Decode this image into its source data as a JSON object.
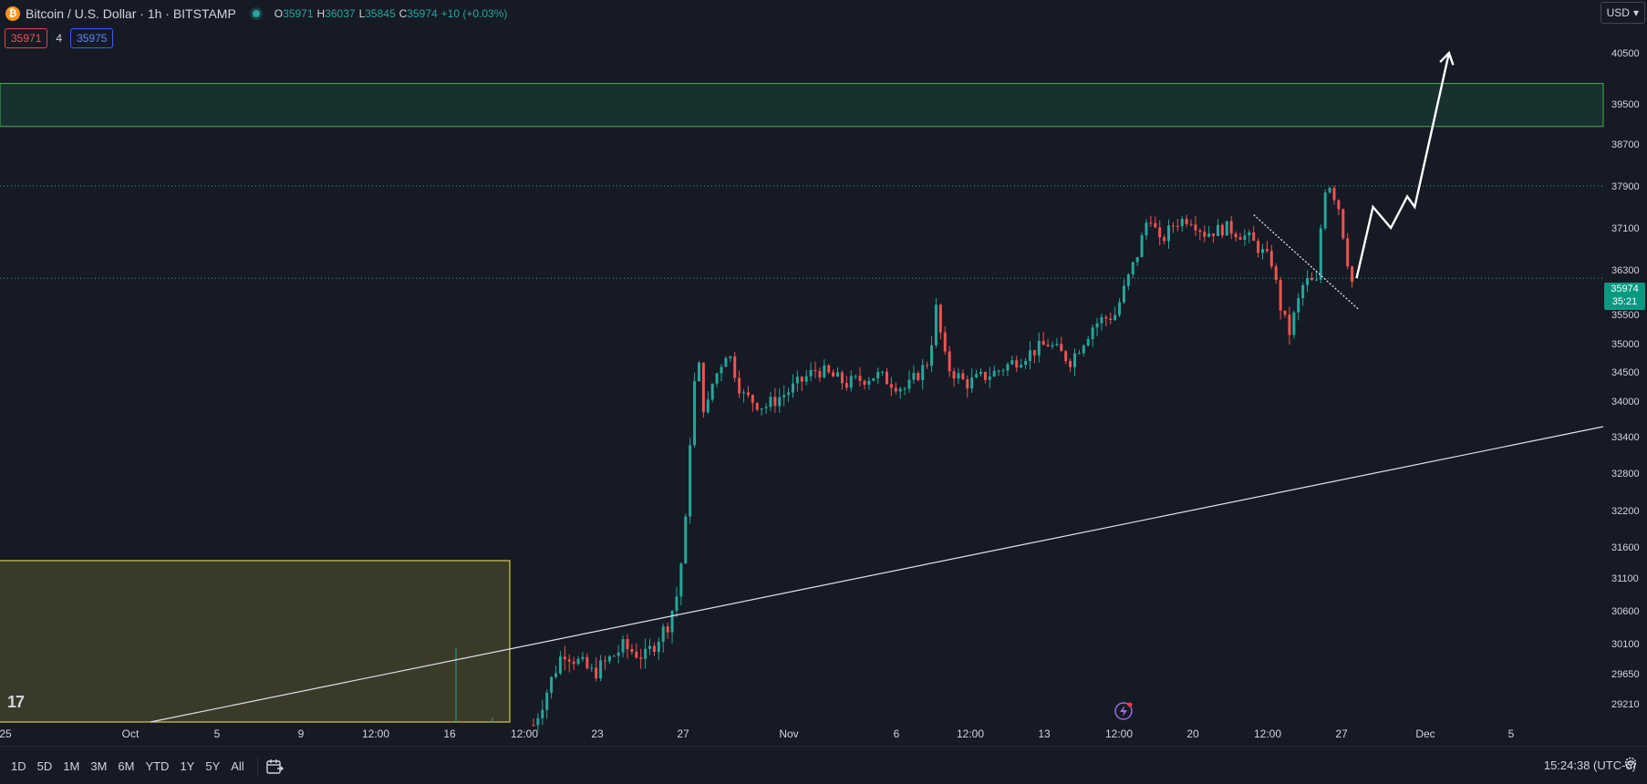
{
  "header": {
    "coin_glyph": "₿",
    "title": "Bitcoin / U.S. Dollar · 1h · BITSTAMP",
    "ohlc": {
      "o_label": "O",
      "o": "35971",
      "h_label": "H",
      "h": "36037",
      "l_label": "L",
      "l": "35845",
      "c_label": "C",
      "c": "35974",
      "change": "+10 (+0.03%)"
    },
    "bid": "35971",
    "spread": "4",
    "ask": "35975",
    "currency": "USD",
    "currency_chevron": "▾"
  },
  "price_tag": {
    "price": "35974",
    "countdown": "35:21"
  },
  "logo_text": "17",
  "bottom": {
    "ranges": [
      "1D",
      "5D",
      "1M",
      "3M",
      "6M",
      "YTD",
      "1Y",
      "5Y",
      "All"
    ],
    "clock": "15:24:38 (UTC-6)"
  },
  "colors": {
    "background": "#161a25",
    "up": "#26a69a",
    "down": "#ef5350",
    "zone_fill": "#17312f",
    "zone_border": "#4caf50",
    "box_fill": "#3a3a28",
    "box_border": "#d6c94a",
    "price_tag": "#089981"
  },
  "chart_data": {
    "type": "candlestick",
    "symbol": "Bitcoin / U.S. Dollar",
    "interval": "1h",
    "exchange": "BITSTAMP",
    "y_tick_labels": [
      "40500",
      "39500",
      "38700",
      "37900",
      "37100",
      "36300",
      "35500",
      "35000",
      "34500",
      "34000",
      "33400",
      "32800",
      "32200",
      "31600",
      "31100",
      "30600",
      "30100",
      "29650",
      "29210"
    ],
    "x_tick_labels": [
      "25",
      "Oct",
      "5",
      "9",
      "12:00",
      "16",
      "12:00",
      "23",
      "27",
      "Nov",
      "6",
      "12:00",
      "13",
      "12:00",
      "20",
      "12:00",
      "27",
      "Dec",
      "5"
    ],
    "last_price": 35974,
    "price_path": [
      [
        0,
        28900
      ],
      [
        2,
        30000
      ],
      [
        4,
        29650
      ],
      [
        6,
        30050
      ],
      [
        7.5,
        29900
      ],
      [
        9,
        30400
      ],
      [
        9.7,
        30900
      ],
      [
        10.2,
        32000
      ],
      [
        10.6,
        33800
      ],
      [
        11,
        34800
      ],
      [
        11.5,
        33700
      ],
      [
        12,
        34300
      ],
      [
        13,
        34900
      ],
      [
        14,
        34100
      ],
      [
        15.5,
        33900
      ],
      [
        17,
        34150
      ],
      [
        19,
        34550
      ],
      [
        21,
        34300
      ],
      [
        23,
        34450
      ],
      [
        25,
        34200
      ],
      [
        26.5,
        34700
      ],
      [
        27,
        35600
      ],
      [
        27.7,
        34600
      ],
      [
        29,
        34300
      ],
      [
        31,
        34500
      ],
      [
        33,
        34800
      ],
      [
        34.5,
        35000
      ],
      [
        36,
        34700
      ],
      [
        37.5,
        35300
      ],
      [
        38,
        35400
      ],
      [
        39,
        35500
      ],
      [
        40.5,
        36600
      ],
      [
        41.3,
        37400
      ],
      [
        42,
        36800
      ],
      [
        43,
        37200
      ],
      [
        44,
        37300
      ],
      [
        45,
        37000
      ],
      [
        46.5,
        37100
      ],
      [
        48,
        36900
      ],
      [
        49.5,
        36450
      ],
      [
        50.2,
        35500
      ],
      [
        50.7,
        35200
      ],
      [
        51.7,
        36100
      ],
      [
        52.5,
        36050
      ],
      [
        53,
        37800
      ],
      [
        53.3,
        38000
      ],
      [
        54,
        37500
      ],
      [
        54.7,
        36300
      ],
      [
        55.0,
        35974
      ]
    ],
    "horizontal_levels": [
      37900,
      36150
    ],
    "supply_zone": [
      39050,
      39900
    ],
    "demand_box": [
      28950,
      31380
    ],
    "trendline": [
      [
        -5,
        28000
      ],
      [
        100,
        33650
      ]
    ],
    "projection": [
      [
        55.2,
        36150
      ],
      [
        56.3,
        37500
      ],
      [
        57.5,
        37100
      ],
      [
        58.6,
        37700
      ],
      [
        59.1,
        37500
      ],
      [
        61.4,
        40500
      ]
    ],
    "dotted_downtrend": [
      [
        48.3,
        37350
      ],
      [
        55.3,
        35600
      ]
    ]
  }
}
